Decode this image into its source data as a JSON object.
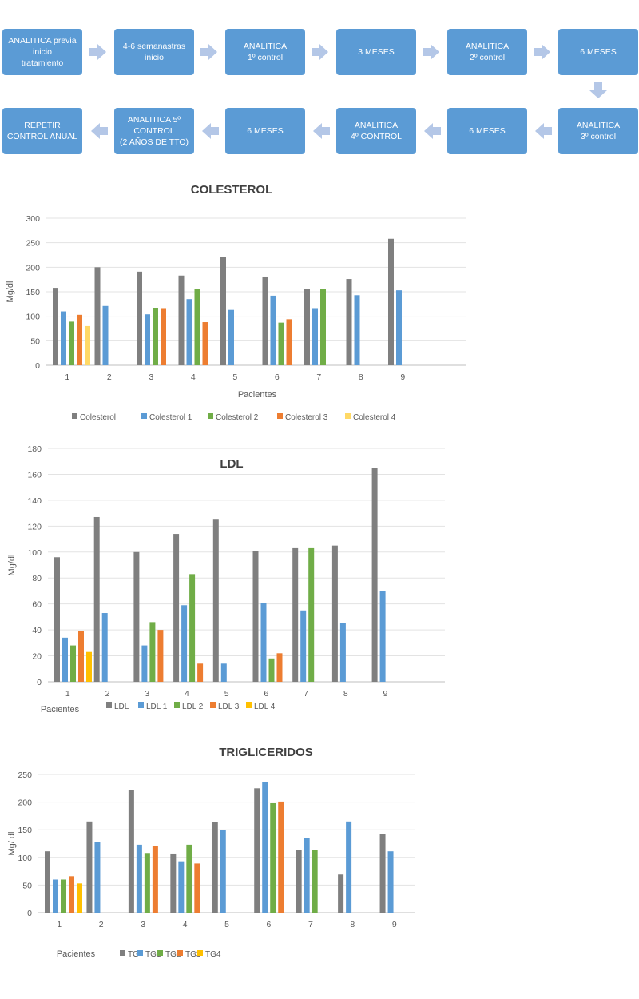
{
  "flowchart": {
    "steps": [
      "ANALITICA previa\ninicio\ntratamiento",
      "4-6 semanastras\ninicio",
      "ANALITICA\n1º control",
      "3 MESES",
      "ANALITICA\n2º control",
      "6 MESES",
      "ANALITICA\n3º control",
      "6 MESES",
      "ANALITICA\n4º CONTROL",
      "6 MESES",
      "ANALITICA 5º\nCONTROL\n(2 AÑOS DE TTO)",
      "REPETIR\nCONTROL ANUAL"
    ],
    "box_color": "#5b9bd5",
    "arrow_color": "#b4c7e7"
  },
  "chart_data": [
    {
      "type": "bar",
      "title": "COLESTEROL",
      "xlabel": "Pacientes",
      "ylabel": "Mg/dl",
      "ylim": [
        0,
        300
      ],
      "yticks": [
        0,
        50,
        100,
        150,
        200,
        250,
        300
      ],
      "categories": [
        "1",
        "2",
        "3",
        "4",
        "5",
        "6",
        "7",
        "8",
        "9"
      ],
      "legend_position": "bottom",
      "series": [
        {
          "name": "Colesterol",
          "color": "#7f7f7f",
          "values": [
            158,
            200,
            191,
            183,
            221,
            181,
            155,
            176,
            258
          ]
        },
        {
          "name": "Colesterol 1",
          "color": "#5b9bd5",
          "values": [
            110,
            121,
            104,
            135,
            113,
            142,
            115,
            143,
            153
          ]
        },
        {
          "name": "Colesterol 2",
          "color": "#70ad47",
          "values": [
            89,
            null,
            116,
            155,
            null,
            87,
            155,
            null,
            null
          ]
        },
        {
          "name": "Colesterol 3",
          "color": "#ed7d31",
          "values": [
            103,
            null,
            115,
            88,
            null,
            94,
            null,
            null,
            null
          ]
        },
        {
          "name": "Colesterol 4",
          "color": "#ffd966",
          "values": [
            80,
            null,
            null,
            null,
            null,
            null,
            null,
            null,
            null
          ]
        }
      ]
    },
    {
      "type": "bar",
      "title": "LDL",
      "xlabel": "Pacientes",
      "ylabel": "Mg/dl",
      "ylim": [
        0,
        180
      ],
      "yticks": [
        0,
        20,
        40,
        60,
        80,
        100,
        120,
        140,
        160,
        180
      ],
      "categories": [
        "1",
        "2",
        "3",
        "4",
        "5",
        "6",
        "7",
        "8",
        "9"
      ],
      "legend_position": "bottom",
      "series": [
        {
          "name": "LDL",
          "color": "#7f7f7f",
          "values": [
            96,
            127,
            100,
            114,
            125,
            101,
            103,
            105,
            165
          ]
        },
        {
          "name": "LDL 1",
          "color": "#5b9bd5",
          "values": [
            34,
            53,
            28,
            59,
            14,
            61,
            55,
            45,
            70
          ]
        },
        {
          "name": "LDL 2",
          "color": "#70ad47",
          "values": [
            28,
            null,
            46,
            83,
            null,
            18,
            103,
            null,
            null
          ]
        },
        {
          "name": "LDL 3",
          "color": "#ed7d31",
          "values": [
            39,
            null,
            40,
            14,
            null,
            22,
            null,
            null,
            null
          ]
        },
        {
          "name": "LDL 4",
          "color": "#ffc000",
          "values": [
            23,
            null,
            null,
            null,
            null,
            null,
            null,
            null,
            null
          ]
        }
      ]
    },
    {
      "type": "bar",
      "title": "TRIGLICERIDOS",
      "xlabel": "Pacientes",
      "ylabel": "Mg/ dl",
      "ylim": [
        0,
        250
      ],
      "yticks": [
        0,
        50,
        100,
        150,
        200,
        250
      ],
      "categories": [
        "1",
        "2",
        "3",
        "4",
        "5",
        "6",
        "7",
        "8",
        "9"
      ],
      "legend_position": "bottom",
      "series": [
        {
          "name": "TG",
          "color": "#7f7f7f",
          "values": [
            111,
            165,
            222,
            107,
            164,
            225,
            114,
            69,
            142
          ]
        },
        {
          "name": "TG1",
          "color": "#5b9bd5",
          "values": [
            60,
            128,
            123,
            93,
            150,
            237,
            135,
            165,
            111
          ]
        },
        {
          "name": "TG2",
          "color": "#70ad47",
          "values": [
            60,
            null,
            108,
            123,
            null,
            198,
            114,
            null,
            null
          ]
        },
        {
          "name": "TG3",
          "color": "#ed7d31",
          "values": [
            66,
            null,
            120,
            89,
            null,
            201,
            null,
            null,
            null
          ]
        },
        {
          "name": "TG4",
          "color": "#ffc000",
          "values": [
            53,
            null,
            null,
            null,
            null,
            null,
            null,
            null,
            null
          ]
        }
      ]
    }
  ]
}
